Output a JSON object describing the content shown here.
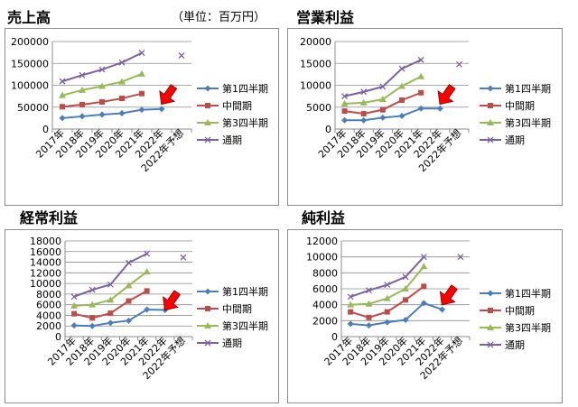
{
  "unit_label": "（単位：百万円）",
  "colors": {
    "q1": "#4a7ebb",
    "half": "#be4b48",
    "q3": "#98b954",
    "full": "#7d60a0",
    "arrow_fill": "#ff0000",
    "grid": "#8c8c8c"
  },
  "chart_data": [
    {
      "type": "line",
      "title": "売上高",
      "categories": [
        "2017年",
        "2018年",
        "2019年",
        "2020年",
        "2021年",
        "2022年",
        "2022年予想"
      ],
      "ylim": [
        0,
        200000
      ],
      "yticks": [
        0,
        50000,
        100000,
        150000,
        200000
      ],
      "grid": true,
      "legend_position": "right",
      "series": [
        {
          "key": "q1",
          "name": "第1四半期",
          "marker": "diamond",
          "values": [
            25000,
            29000,
            33000,
            36000,
            44000,
            46000,
            null
          ]
        },
        {
          "key": "half",
          "name": "中間期",
          "marker": "square",
          "values": [
            51000,
            56000,
            62000,
            70000,
            81000,
            null,
            null
          ]
        },
        {
          "key": "q3",
          "name": "第3四半期",
          "marker": "triangle",
          "values": [
            77000,
            89000,
            98000,
            108000,
            126000,
            null,
            null
          ]
        },
        {
          "key": "full",
          "name": "通期",
          "marker": "x",
          "values": [
            109000,
            123000,
            136000,
            152000,
            174000,
            null,
            168000
          ]
        }
      ],
      "annotation": {
        "type": "arrow",
        "category_index": 5,
        "value": 75000
      }
    },
    {
      "type": "line",
      "title": "営業利益",
      "categories": [
        "2017年",
        "2018年",
        "2019年",
        "2020年",
        "2021年",
        "2022年",
        "2022年予想"
      ],
      "ylim": [
        0,
        20000
      ],
      "yticks": [
        0,
        5000,
        10000,
        15000,
        20000
      ],
      "grid": true,
      "legend_position": "right",
      "series": [
        {
          "key": "q1",
          "name": "第1四半期",
          "marker": "diamond",
          "values": [
            2000,
            2000,
            2600,
            3000,
            4700,
            4700,
            null
          ]
        },
        {
          "key": "half",
          "name": "中間期",
          "marker": "square",
          "values": [
            4100,
            3500,
            4400,
            6600,
            8300,
            null,
            null
          ]
        },
        {
          "key": "q3",
          "name": "第3四半期",
          "marker": "triangle",
          "values": [
            5800,
            6000,
            6800,
            9800,
            12000,
            null,
            null
          ]
        },
        {
          "key": "full",
          "name": "通期",
          "marker": "x",
          "values": [
            7500,
            8500,
            9700,
            13800,
            15800,
            null,
            14800
          ]
        }
      ],
      "annotation": {
        "type": "arrow",
        "category_index": 5,
        "value": 7500
      }
    },
    {
      "type": "line",
      "title": "経常利益",
      "categories": [
        "2017年",
        "2018年",
        "2019年",
        "2020年",
        "2021年",
        "2022年",
        "2022年予想"
      ],
      "ylim": [
        0,
        18000
      ],
      "yticks": [
        0,
        2000,
        4000,
        6000,
        8000,
        10000,
        12000,
        14000,
        16000,
        18000
      ],
      "grid": true,
      "legend_position": "right",
      "series": [
        {
          "key": "q1",
          "name": "第1四半期",
          "marker": "diamond",
          "values": [
            2100,
            2000,
            2600,
            3000,
            5100,
            5000,
            null
          ]
        },
        {
          "key": "half",
          "name": "中間期",
          "marker": "square",
          "values": [
            4300,
            3500,
            4400,
            6700,
            8600,
            null,
            null
          ]
        },
        {
          "key": "q3",
          "name": "第3四半期",
          "marker": "triangle",
          "values": [
            5800,
            6000,
            6900,
            9600,
            12200,
            null,
            null
          ]
        },
        {
          "key": "full",
          "name": "通期",
          "marker": "x",
          "values": [
            7500,
            8800,
            9800,
            13900,
            15600,
            null,
            14900
          ]
        }
      ],
      "annotation": {
        "type": "arrow",
        "category_index": 5,
        "value": 6500
      }
    },
    {
      "type": "line",
      "title": "純利益",
      "categories": [
        "2017年",
        "2018年",
        "2019年",
        "2020年",
        "2021年",
        "2022年",
        "2022年予想"
      ],
      "ylim": [
        0,
        12000
      ],
      "yticks": [
        0,
        2000,
        4000,
        6000,
        8000,
        10000,
        12000
      ],
      "grid": true,
      "legend_position": "right",
      "series": [
        {
          "key": "q1",
          "name": "第1四半期",
          "marker": "diamond",
          "values": [
            1600,
            1400,
            1800,
            2100,
            4200,
            3400,
            null
          ]
        },
        {
          "key": "half",
          "name": "中間期",
          "marker": "square",
          "values": [
            3100,
            2400,
            3100,
            4600,
            6300,
            null,
            null
          ]
        },
        {
          "key": "q3",
          "name": "第3四半期",
          "marker": "triangle",
          "values": [
            4000,
            4100,
            4800,
            6000,
            8800,
            null,
            null
          ]
        },
        {
          "key": "full",
          "name": "通期",
          "marker": "x",
          "values": [
            5000,
            5800,
            6500,
            7500,
            10000,
            null,
            10000
          ]
        }
      ],
      "annotation": {
        "type": "arrow",
        "category_index": 5,
        "value": 5000
      }
    }
  ]
}
